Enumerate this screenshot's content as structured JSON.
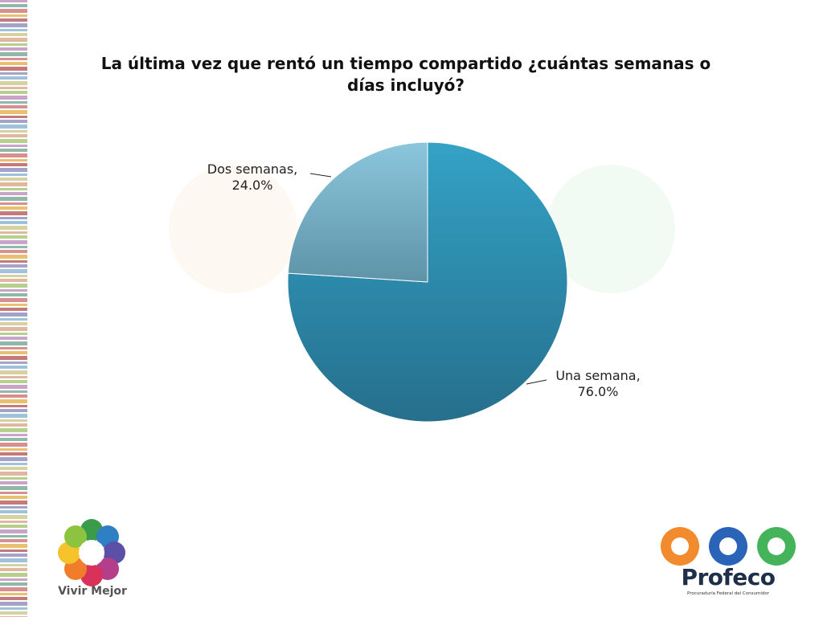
{
  "title": {
    "line1": "La última vez que rentó un tiempo compartido ¿cuántas semanas o",
    "line2": "días incluyó?"
  },
  "chart_data": {
    "type": "pie",
    "title": "La última vez que rentó un tiempo compartido ¿cuántas semanas o días incluyó?",
    "slices": [
      {
        "label": "Una semana",
        "value": 76.0,
        "display": "76.0%",
        "color": "#2f8fb1"
      },
      {
        "label": "Dos semanas",
        "value": 24.0,
        "display": "24.0%",
        "color": "#7fb6cc"
      }
    ],
    "legend": "none"
  },
  "logos": {
    "left_text": "Vivir Mejor",
    "right_name": "Profeco",
    "right_subtitle": "Procuraduría Federal del Consumidor"
  },
  "colors": {
    "title": "#111111",
    "slice_primary": "#2f8fb1",
    "slice_secondary": "#7fb6cc"
  }
}
